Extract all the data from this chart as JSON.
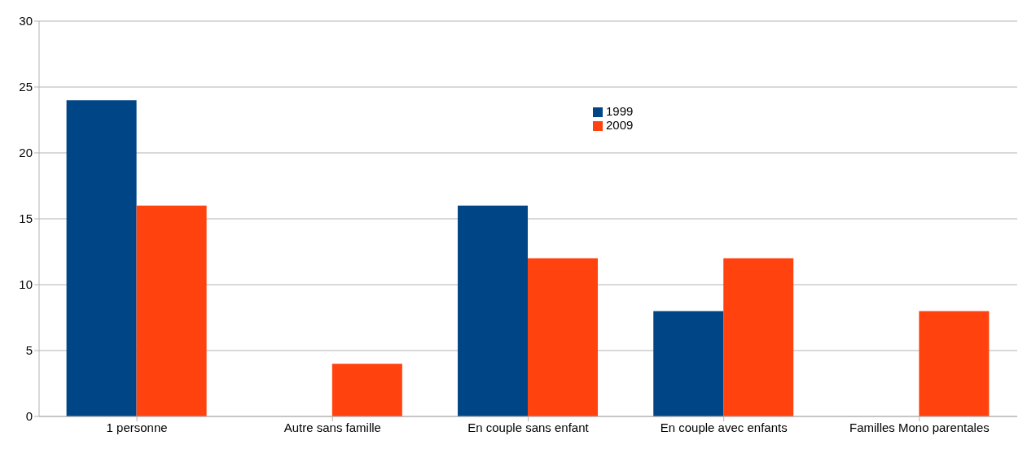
{
  "chart_data": {
    "type": "bar",
    "categories": [
      "1 personne",
      "Autre sans famille",
      "En couple sans enfant",
      "En couple avec enfants",
      "Familles Mono parentales"
    ],
    "series": [
      {
        "name": "1999",
        "color": "#004586",
        "values": [
          24,
          0,
          16,
          8,
          0
        ]
      },
      {
        "name": "2009",
        "color": "#ff420e",
        "values": [
          16,
          4,
          12,
          12,
          8
        ]
      }
    ],
    "ylim": [
      0,
      30
    ],
    "yticks": [
      0,
      5,
      10,
      15,
      20,
      25,
      30
    ],
    "grid": "y",
    "legend": "top"
  }
}
